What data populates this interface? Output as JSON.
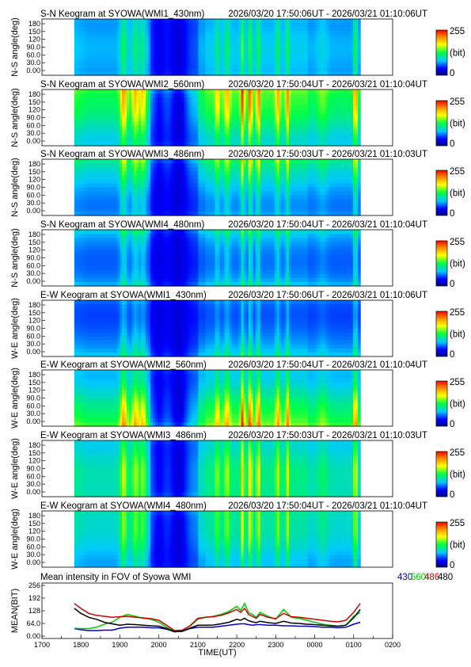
{
  "chart_data": [
    {
      "type": "heatmap",
      "title": "S-N Keogram at SYOWA(WMI1_430nm)",
      "time_range": "2026/03/20 17:50:06UT - 2026/03/21 01:10:06UT",
      "ylabel": "N-S angle(deg)",
      "yticks": [
        "180",
        "150",
        "120",
        "90.0",
        "60.0",
        "30.0",
        "0.00"
      ],
      "colorbar": {
        "min": "0",
        "max": "255",
        "unit": "(bit)"
      },
      "data_start_ut": 17.83,
      "data_end_ut": 25.17,
      "gain": 0.55
    },
    {
      "type": "heatmap",
      "title": "S-N Keogram at SYOWA(WMI2_560nm)",
      "time_range": "2026/03/20 17:50:04UT - 2026/03/21 01:10:04UT",
      "ylabel": "N-S angle(deg)",
      "yticks": [
        "180",
        "150",
        "120",
        "90.0",
        "60.0",
        "30.0",
        "0.00"
      ],
      "colorbar": {
        "min": "0",
        "max": "255",
        "unit": "(bit)"
      },
      "data_start_ut": 17.83,
      "data_end_ut": 25.17,
      "gain": 1.0
    },
    {
      "type": "heatmap",
      "title": "S-N Keogram at SYOWA(WMI3_486nm)",
      "time_range": "2026/03/20 17:50:03UT - 2026/03/21 01:10:03UT",
      "ylabel": "N-S angle(deg)",
      "yticks": [
        "180",
        "150",
        "120",
        "90.0",
        "60.0",
        "30.0",
        "0.00"
      ],
      "colorbar": {
        "min": "0",
        "max": "255",
        "unit": "(bit)"
      },
      "data_start_ut": 17.83,
      "data_end_ut": 25.17,
      "gain": 0.8
    },
    {
      "type": "heatmap",
      "title": "S-N Keogram at SYOWA(WMI4_480nm)",
      "time_range": "2026/03/20 17:50:04UT - 2026/03/21 01:10:04UT",
      "ylabel": "N-S angle(deg)",
      "yticks": [
        "180",
        "150",
        "120",
        "90.0",
        "60.0",
        "30.0",
        "0.00"
      ],
      "colorbar": {
        "min": "0",
        "max": "255",
        "unit": "(bit)"
      },
      "data_start_ut": 17.83,
      "data_end_ut": 25.17,
      "gain": 0.72
    },
    {
      "type": "heatmap",
      "title": "E-W Keogram at SYOWA(WMI1_430nm)",
      "time_range": "2026/03/20 17:50:06UT - 2026/03/21 01:10:06UT",
      "ylabel": "W-E angle(deg)",
      "yticks": [
        "180",
        "150",
        "120",
        "90.0",
        "60.0",
        "30.0",
        "0.00"
      ],
      "colorbar": {
        "min": "0",
        "max": "255",
        "unit": "(bit)"
      },
      "data_start_ut": 17.83,
      "data_end_ut": 25.17,
      "gain": 0.58
    },
    {
      "type": "heatmap",
      "title": "E-W Keogram at SYOWA(WMI2_560nm)",
      "time_range": "2026/03/20 17:50:04UT - 2026/03/21 01:10:04UT",
      "ylabel": "W-E angle(deg)",
      "yticks": [
        "180",
        "150",
        "120",
        "90.0",
        "60.0",
        "30.0",
        "0.00"
      ],
      "colorbar": {
        "min": "0",
        "max": "255",
        "unit": "(bit)"
      },
      "data_start_ut": 17.83,
      "data_end_ut": 25.17,
      "gain": 1.0
    },
    {
      "type": "heatmap",
      "title": "E-W Keogram at SYOWA(WMI3_486nm)",
      "time_range": "2026/03/20 17:50:03UT - 2026/03/21 01:10:03UT",
      "ylabel": "W-E angle(deg)",
      "yticks": [
        "180",
        "150",
        "120",
        "90.0",
        "60.0",
        "30.0",
        "0.00"
      ],
      "colorbar": {
        "min": "0",
        "max": "255",
        "unit": "(bit)"
      },
      "data_start_ut": 17.83,
      "data_end_ut": 25.17,
      "gain": 0.8
    },
    {
      "type": "heatmap",
      "title": "E-W Keogram at SYOWA(WMI4_480nm)",
      "time_range": "2026/03/20 17:50:04UT - 2026/03/21 01:10:04UT",
      "ylabel": "W-E angle(deg)",
      "yticks": [
        "180",
        "150",
        "120",
        "90.0",
        "60.0",
        "30.0",
        "0.00"
      ],
      "colorbar": {
        "min": "0",
        "max": "255",
        "unit": "(bit)"
      },
      "data_start_ut": 17.83,
      "data_end_ut": 25.17,
      "gain": 0.72
    },
    {
      "type": "line",
      "title": "Mean intensity in FOV of Syowa WMI",
      "ylabel": "MEAN(BIT)",
      "xlabel": "TIME(UT)",
      "yticks": [
        "256",
        "192",
        "128",
        "64.0",
        "0.00"
      ],
      "ylim": [
        0,
        256
      ],
      "xlim": [
        17,
        26
      ],
      "xticks": [
        "1700",
        "1800",
        "1900",
        "2000",
        "2100",
        "2200",
        "2300",
        "0000",
        "0100",
        "0200"
      ],
      "x": [
        17.83,
        18.0,
        18.2,
        18.4,
        18.6,
        18.8,
        19.0,
        19.2,
        19.4,
        19.6,
        19.8,
        20.0,
        20.2,
        20.4,
        20.6,
        20.8,
        21.0,
        21.2,
        21.4,
        21.6,
        21.8,
        22.0,
        22.1,
        22.2,
        22.3,
        22.4,
        22.5,
        22.6,
        22.8,
        23.0,
        23.2,
        23.4,
        23.6,
        23.8,
        24.0,
        24.2,
        24.4,
        24.6,
        24.8,
        25.0,
        25.17
      ],
      "series": [
        {
          "name": "430",
          "color": "#0000cc",
          "values": [
            38,
            32,
            28,
            28,
            30,
            30,
            40,
            45,
            45,
            45,
            42,
            42,
            35,
            22,
            25,
            38,
            45,
            45,
            45,
            50,
            55,
            60,
            62,
            62,
            58,
            55,
            58,
            58,
            55,
            55,
            52,
            52,
            50,
            50,
            48,
            45,
            45,
            42,
            45,
            60,
            70
          ]
        },
        {
          "name": "560",
          "color": "#00cc00",
          "values": [
            40,
            38,
            38,
            45,
            60,
            70,
            95,
            110,
            100,
            90,
            85,
            70,
            45,
            25,
            30,
            50,
            85,
            95,
            100,
            110,
            125,
            150,
            130,
            165,
            120,
            110,
            95,
            120,
            100,
            85,
            135,
            95,
            90,
            80,
            70,
            60,
            55,
            50,
            55,
            100,
            120
          ]
        },
        {
          "name": "486",
          "color": "#cc0000",
          "values": [
            165,
            140,
            115,
            105,
            100,
            95,
            98,
            100,
            95,
            92,
            88,
            80,
            55,
            28,
            30,
            52,
            90,
            95,
            98,
            105,
            118,
            135,
            120,
            140,
            110,
            100,
            90,
            110,
            95,
            88,
            115,
            98,
            95,
            90,
            85,
            80,
            75,
            72,
            80,
            120,
            165
          ]
        },
        {
          "name": "480",
          "color": "#000000",
          "values": [
            140,
            115,
            95,
            85,
            70,
            62,
            55,
            60,
            58,
            55,
            52,
            50,
            38,
            22,
            24,
            40,
            55,
            55,
            56,
            62,
            70,
            85,
            80,
            90,
            78,
            72,
            68,
            75,
            68,
            64,
            75,
            66,
            64,
            60,
            58,
            55,
            52,
            50,
            55,
            92,
            135
          ]
        }
      ]
    }
  ]
}
